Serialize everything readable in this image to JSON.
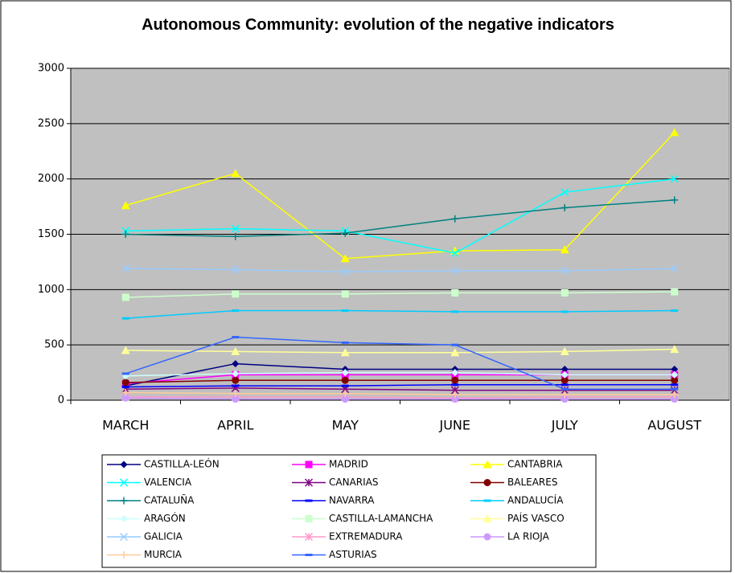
{
  "chart_data": {
    "type": "line",
    "title": "Autonomous Community: evolution of the negative indicators",
    "categories": [
      "MARCH",
      "APRIL",
      "MAY",
      "JUNE",
      "JULY",
      "AUGUST"
    ],
    "ylim": [
      0,
      3000
    ],
    "yticks": [
      0,
      500,
      1000,
      1500,
      2000,
      2500,
      3000
    ],
    "grid": true,
    "plot_background": "#c0c0c0",
    "series": [
      {
        "name": "CASTILLA-LEÓN",
        "color": "#000080",
        "marker": "diamond",
        "values": [
          130,
          330,
          280,
          280,
          280,
          280
        ]
      },
      {
        "name": "MADRID",
        "color": "#ff00ff",
        "marker": "square",
        "values": [
          150,
          230,
          230,
          230,
          230,
          230
        ]
      },
      {
        "name": "CANTABRIA",
        "color": "#ffff00",
        "marker": "triangle",
        "values": [
          1760,
          2050,
          1280,
          1350,
          1360,
          2420
        ]
      },
      {
        "name": "VALENCIA",
        "color": "#00ffff",
        "marker": "x",
        "values": [
          1530,
          1550,
          1530,
          1330,
          1880,
          2000
        ]
      },
      {
        "name": "CANARIAS",
        "color": "#800080",
        "marker": "star",
        "values": [
          100,
          110,
          100,
          90,
          90,
          90
        ]
      },
      {
        "name": "BALEARES",
        "color": "#800000",
        "marker": "circle",
        "values": [
          160,
          180,
          180,
          180,
          180,
          180
        ]
      },
      {
        "name": "CATALUÑA",
        "color": "#008080",
        "marker": "plus",
        "values": [
          1500,
          1480,
          1510,
          1640,
          1740,
          1810
        ]
      },
      {
        "name": "NAVARRA",
        "color": "#0000ff",
        "marker": "dash",
        "values": [
          120,
          130,
          130,
          140,
          140,
          140
        ]
      },
      {
        "name": "ANDALUCÍA",
        "color": "#00ccff",
        "marker": "dash",
        "values": [
          740,
          810,
          810,
          800,
          800,
          810
        ]
      },
      {
        "name": "ARAGÓN",
        "color": "#ccffff",
        "marker": "diamond",
        "values": [
          220,
          240,
          250,
          250,
          230,
          230
        ]
      },
      {
        "name": "CASTILLA-LAMANCHA",
        "color": "#ccffcc",
        "marker": "square",
        "values": [
          930,
          960,
          960,
          970,
          970,
          980
        ]
      },
      {
        "name": "PAÍS VASCO",
        "color": "#ffff99",
        "marker": "triangle",
        "values": [
          450,
          440,
          430,
          430,
          440,
          460
        ]
      },
      {
        "name": "GALICIA",
        "color": "#99ccff",
        "marker": "x",
        "values": [
          1190,
          1180,
          1160,
          1170,
          1170,
          1190
        ]
      },
      {
        "name": "EXTREMADURA",
        "color": "#ff99cc",
        "marker": "star",
        "values": [
          30,
          30,
          30,
          20,
          30,
          30
        ]
      },
      {
        "name": "LA RIOJA",
        "color": "#cc99ff",
        "marker": "circle",
        "values": [
          20,
          10,
          10,
          10,
          10,
          10
        ]
      },
      {
        "name": "MURCIA",
        "color": "#ffcc99",
        "marker": "plus",
        "values": [
          70,
          60,
          60,
          50,
          50,
          50
        ]
      },
      {
        "name": "ASTURIAS",
        "color": "#3366ff",
        "marker": "dash",
        "values": [
          240,
          570,
          520,
          500,
          100,
          100
        ]
      }
    ]
  }
}
